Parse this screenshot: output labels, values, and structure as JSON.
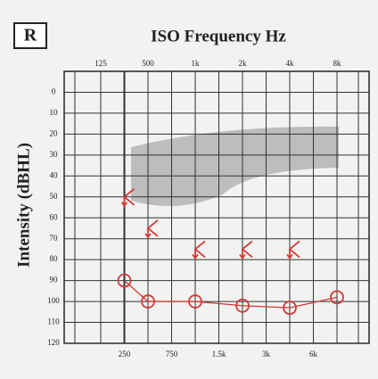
{
  "chart_data": {
    "type": "audiogram",
    "title": "ISO Frequency Hz",
    "ear": "R",
    "y_label": "Intensity (dBHL)",
    "categories": [
      "125",
      "250",
      "500",
      "750",
      "1k",
      "1.5k",
      "2k",
      "3k",
      "4k",
      "6k",
      "8k"
    ],
    "ylim": [
      -10,
      120
    ],
    "yticks": [
      0,
      10,
      20,
      30,
      40,
      50,
      60,
      70,
      80,
      90,
      100,
      110,
      120
    ],
    "y_inverted": true,
    "grid": true,
    "series": [
      {
        "marker": "circle",
        "color": "#d23a3a",
        "values": [
          null,
          90,
          100,
          null,
          100,
          null,
          102,
          null,
          103,
          null,
          98
        ]
      },
      {
        "marker": "bracket",
        "color": "#d23a3a",
        "values": [
          null,
          50,
          65,
          null,
          75,
          null,
          75,
          null,
          75,
          null,
          null
        ]
      }
    ]
  }
}
